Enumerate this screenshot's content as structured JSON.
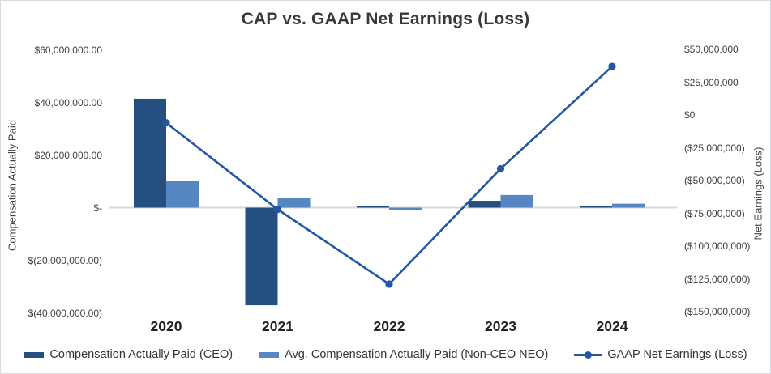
{
  "chart_data": {
    "type": "combo_bar_line",
    "title": "CAP vs. GAAP Net Earnings (Loss)",
    "categories": [
      "2020",
      "2021",
      "2022",
      "2023",
      "2024"
    ],
    "series": [
      {
        "name": "Compensation Actually Paid (CEO)",
        "type": "bar",
        "axis": "left",
        "color": "#244F7E",
        "values_usd_millions": [
          41.4,
          -37.1,
          0.6,
          2.6,
          0.5
        ]
      },
      {
        "name": "Avg. Compensation Actually Paid (Non-CEO NEO)",
        "type": "bar",
        "axis": "left",
        "color": "#5687C2",
        "values_usd_millions": [
          10.0,
          3.8,
          -0.8,
          4.8,
          1.5
        ]
      },
      {
        "name": "GAAP Net Earnings (Loss)",
        "type": "line",
        "axis": "right",
        "color": "#2157A4",
        "values_usd_millions": [
          -6,
          -72,
          -129,
          -41,
          37
        ]
      }
    ],
    "left_axis": {
      "label": "Compensation Actually Paid",
      "tick_labels": [
        "$60,000,000.00",
        "$40,000,000.00",
        "$20,000,000.00",
        "$-",
        "$(20,000,000.00)",
        "$(40,000,000.00)"
      ],
      "tick_values_usd_millions": [
        60,
        40,
        20,
        0,
        -20,
        -40
      ],
      "range_usd_millions": [
        -45,
        62
      ]
    },
    "right_axis": {
      "label": "Net Earnings (Loss)",
      "tick_labels": [
        "$50,000,000",
        "$25,000,000",
        "$0",
        "($25,000,000)",
        "($50,000,000)",
        "($75,000,000)",
        "($100,000,000)",
        "($125,000,000)",
        "($150,000,000)"
      ],
      "tick_values_usd_millions": [
        50,
        25,
        0,
        -25,
        -50,
        -75,
        -100,
        -125,
        -150
      ],
      "range_usd_millions": [
        -160,
        55
      ]
    },
    "legend": {
      "position": "bottom",
      "entries": [
        "Compensation Actually Paid (CEO)",
        "Avg. Compensation Actually Paid (Non-CEO NEO)",
        "GAAP Net Earnings (Loss)"
      ]
    },
    "gridlines": "zero-line-only",
    "colors": {
      "gridline": "#D9D9D9",
      "title_text": "#383838",
      "axis_text": "#404040"
    }
  }
}
